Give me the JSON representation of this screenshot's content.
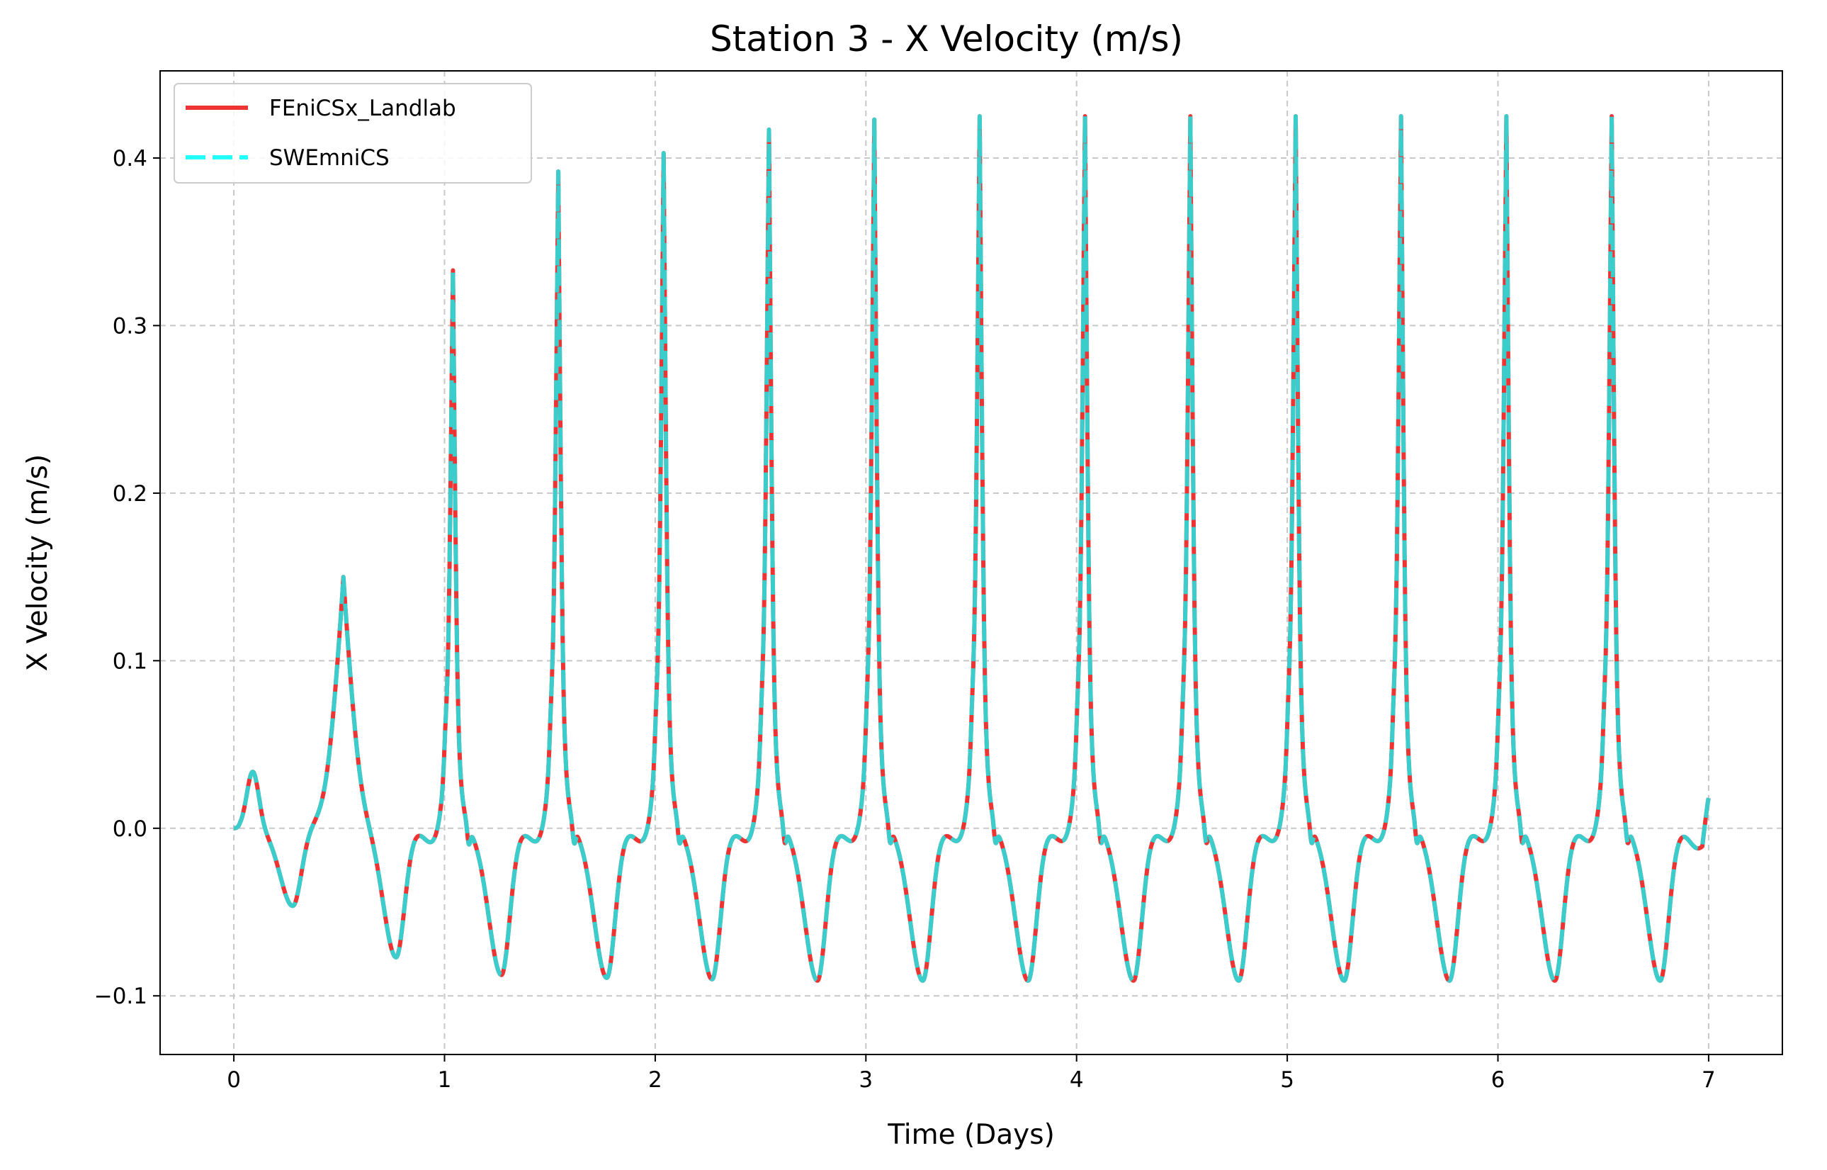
{
  "chart_data": {
    "type": "line",
    "title": "Station 3 - X Velocity (m/s)",
    "xlabel": "Time (Days)",
    "ylabel": "X Velocity (m/s)",
    "xlim": [
      -0.35,
      7.35
    ],
    "ylim": [
      -0.135,
      0.452
    ],
    "xticks": [
      0,
      1,
      2,
      3,
      4,
      5,
      6,
      7
    ],
    "xtick_labels": [
      "0",
      "1",
      "2",
      "3",
      "4",
      "5",
      "6",
      "7"
    ],
    "yticks": [
      -0.1,
      0.0,
      0.1,
      0.2,
      0.3,
      0.4
    ],
    "ytick_labels": [
      "−0.1",
      "0.0",
      "0.1",
      "0.2",
      "0.3",
      "0.4"
    ],
    "grid": true,
    "legend_position": "top-left",
    "tidal_period_days": 0.5,
    "peak_times": [
      0.52,
      1.04,
      1.54,
      2.04,
      2.54,
      3.04,
      3.54,
      4.04,
      4.54,
      5.04,
      5.54,
      6.04,
      6.54
    ],
    "peak_values": [
      0.15,
      0.333,
      0.392,
      0.403,
      0.417,
      0.423,
      0.425,
      0.425,
      0.425,
      0.425,
      0.425,
      0.425,
      0.425
    ],
    "trough_times": [
      0.28,
      0.77,
      1.27,
      1.77,
      2.27,
      2.77,
      3.27,
      3.77,
      4.27,
      4.77,
      5.27,
      5.77,
      6.27,
      6.77
    ],
    "trough_values": [
      -0.055,
      -0.091,
      -0.103,
      -0.105,
      -0.106,
      -0.107,
      -0.107,
      -0.107,
      -0.107,
      -0.107,
      -0.107,
      -0.107,
      -0.107,
      -0.107
    ],
    "series": [
      {
        "name": "FEniCSx_Landlab",
        "color": "#ee3333",
        "style": "solid"
      },
      {
        "name": "SWEmniCS",
        "color": "#30d5d5",
        "legend_color": "#22ffff",
        "style": "dashed"
      }
    ],
    "x_end": 7.0,
    "y_end": 0.018
  }
}
